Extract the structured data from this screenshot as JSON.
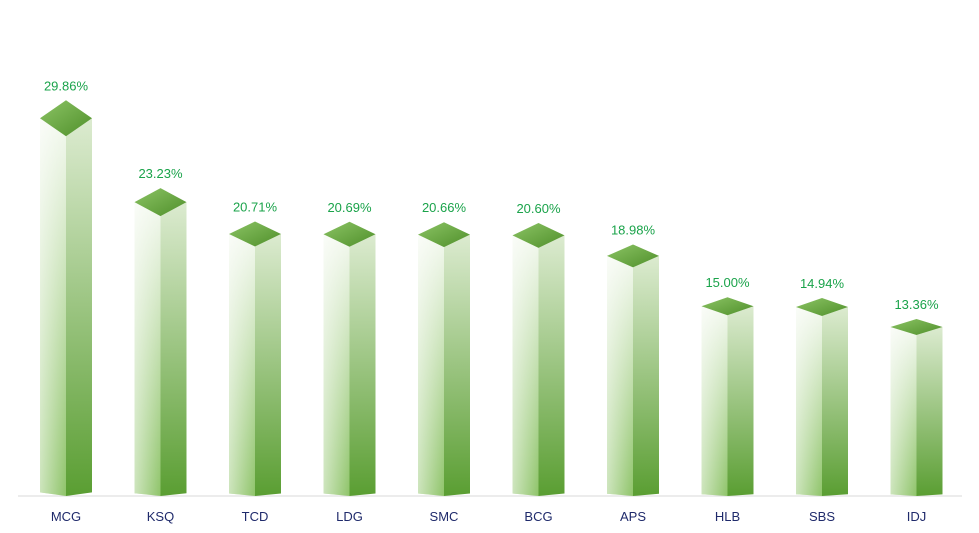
{
  "chart_data": {
    "type": "bar",
    "categories": [
      "MCG",
      "KSQ",
      "TCD",
      "LDG",
      "SMC",
      "BCG",
      "APS",
      "HLB",
      "SBS",
      "IDJ"
    ],
    "values": [
      29.86,
      23.23,
      20.71,
      20.69,
      20.66,
      20.6,
      18.98,
      15.0,
      14.94,
      13.36
    ],
    "value_labels": [
      "29.86%",
      "23.23%",
      "20.71%",
      "20.69%",
      "20.66%",
      "20.60%",
      "18.98%",
      "15.00%",
      "14.94%",
      "13.36%"
    ],
    "title": "",
    "xlabel": "",
    "ylabel": "",
    "ylim": [
      0,
      30
    ],
    "grid": false,
    "legend": "none"
  },
  "colors": {
    "bar_dark": "#5a9e32",
    "bar_light": "#f2f8ee",
    "top_dark": "#4f8f2a",
    "top_light": "#8cc465",
    "value_label": "#1aa34a",
    "category_label": "#1f2a6b",
    "axis": "#d9d9d9"
  }
}
